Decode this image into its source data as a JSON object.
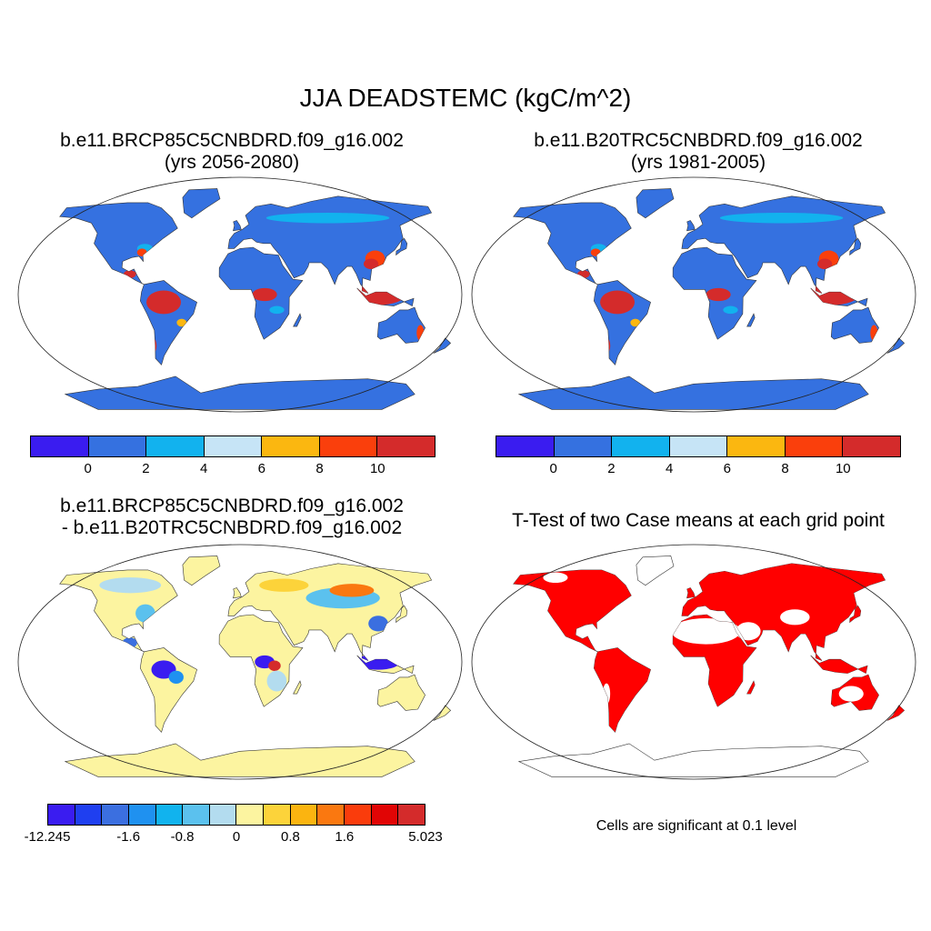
{
  "title": "JJA DEADSTEMC (kgC/m^2)",
  "panels": [
    {
      "line1": "b.e11.BRCP85C5CNBDRD.f09_g16.002",
      "line2": "(yrs 2056-2080)",
      "colorbar": {
        "colors": [
          "#3a1cf0",
          "#3571e0",
          "#12b2ee",
          "#c6e4f6",
          "#fbb710",
          "#fa3f0c",
          "#d42b2b"
        ],
        "labels": [
          "0",
          "2",
          "4",
          "6",
          "8",
          "10"
        ]
      }
    },
    {
      "line1": "b.e11.B20TRC5CNBDRD.f09_g16.002",
      "line2": "(yrs 1981-2005)",
      "colorbar": {
        "colors": [
          "#3a1cf0",
          "#3571e0",
          "#12b2ee",
          "#c6e4f6",
          "#fbb710",
          "#fa3f0c",
          "#d42b2b"
        ],
        "labels": [
          "0",
          "2",
          "4",
          "6",
          "8",
          "10"
        ]
      }
    },
    {
      "line1": "b.e11.BRCP85C5CNBDRD.f09_g16.002",
      "line2": "- b.e11.B20TRC5CNBDRD.f09_g16.002",
      "colorbar": {
        "colors": [
          "#3a1cf0",
          "#1f3ff0",
          "#3b6fe0",
          "#1f91f0",
          "#11b3ee",
          "#5bc1ee",
          "#b3dcef",
          "#fcf4a0",
          "#fcd33a",
          "#fbb410",
          "#fa7810",
          "#fa3c0c",
          "#e10505",
          "#d42b2b"
        ],
        "labels": [
          "-12.245",
          "-1.6",
          "-0.8",
          "0",
          "0.8",
          "1.6",
          "5.023"
        ]
      }
    },
    {
      "line1": "T-Test of two Case means at each grid point",
      "note": "Cells are significant at 0.1 level"
    }
  ]
}
